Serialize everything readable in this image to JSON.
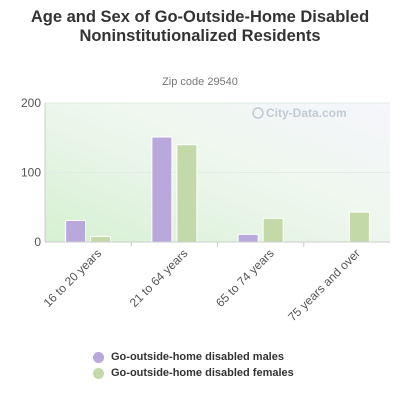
{
  "chart_data": {
    "type": "bar",
    "title": "Age and Sex of Go-Outside-Home Disabled Noninstitutionalized Residents",
    "subtitle": "Zip code 29540",
    "categories": [
      "16 to 20 years",
      "21 to 64 years",
      "65 to 74 years",
      "75 years and over"
    ],
    "series": [
      {
        "name": "Go-outside-home disabled males",
        "color": "#b9a8dc",
        "values": [
          31,
          151,
          11,
          0
        ]
      },
      {
        "name": "Go-outside-home disabled females",
        "color": "#c4d9a8",
        "values": [
          8,
          140,
          34,
          43
        ]
      }
    ],
    "ylim": [
      0,
      200
    ],
    "yticks": [
      0,
      100,
      200
    ],
    "grid": true,
    "legend_position": "bottom",
    "watermark": "City-Data.com"
  }
}
